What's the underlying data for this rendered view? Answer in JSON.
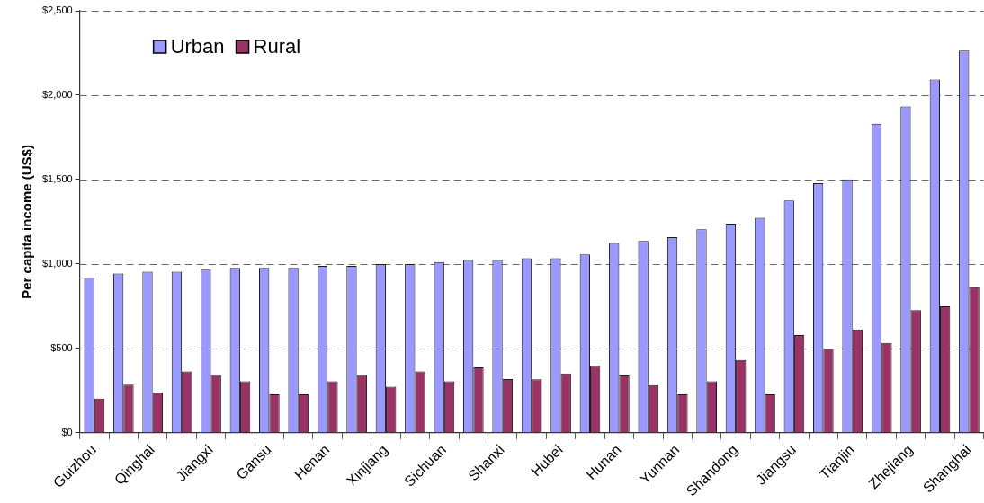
{
  "chart_data": {
    "type": "bar",
    "ylabel": "Per capita income (US$)",
    "categories": [
      "Guizhou",
      null,
      "Qinghai",
      null,
      "Jiangxi",
      null,
      "Gansu",
      null,
      "Henan",
      null,
      "Xinjiang",
      null,
      "Sichuan",
      null,
      "Shanxi",
      null,
      "Hubei",
      null,
      "Hunan",
      null,
      "Yunnan",
      null,
      "Shandong",
      null,
      "Jiangsu",
      null,
      "Tianjin",
      null,
      "Zhejiang",
      null,
      "Shanghai"
    ],
    "series": [
      {
        "name": "Urban",
        "color": "#9999ff",
        "values": [
          920,
          943,
          954,
          954,
          966,
          977,
          977,
          977,
          989,
          989,
          1000,
          1000,
          1011,
          1023,
          1023,
          1034,
          1034,
          1057,
          1125,
          1137,
          1159,
          1205,
          1239,
          1273,
          1376,
          1478,
          1501,
          1831,
          1933,
          2093,
          2264
        ]
      },
      {
        "name": "Rural",
        "color": "#993366",
        "values": [
          203,
          285,
          239,
          364,
          342,
          305,
          228,
          228,
          305,
          342,
          273,
          364,
          305,
          387,
          319,
          317,
          351,
          397,
          340,
          283,
          228,
          305,
          431,
          228,
          579,
          499,
          613,
          532,
          727,
          750,
          863
        ]
      }
    ],
    "ylim": [
      0,
      2500
    ],
    "yticks": [
      {
        "value": 0,
        "label": "$0"
      },
      {
        "value": 500,
        "label": "$500"
      },
      {
        "value": 1000,
        "label": "$1,000"
      },
      {
        "value": 1500,
        "label": "$1,500"
      },
      {
        "value": 2000,
        "label": "$2,000"
      },
      {
        "value": 2500,
        "label": "$2,500"
      }
    ],
    "grid": "y",
    "legend": "top left"
  }
}
